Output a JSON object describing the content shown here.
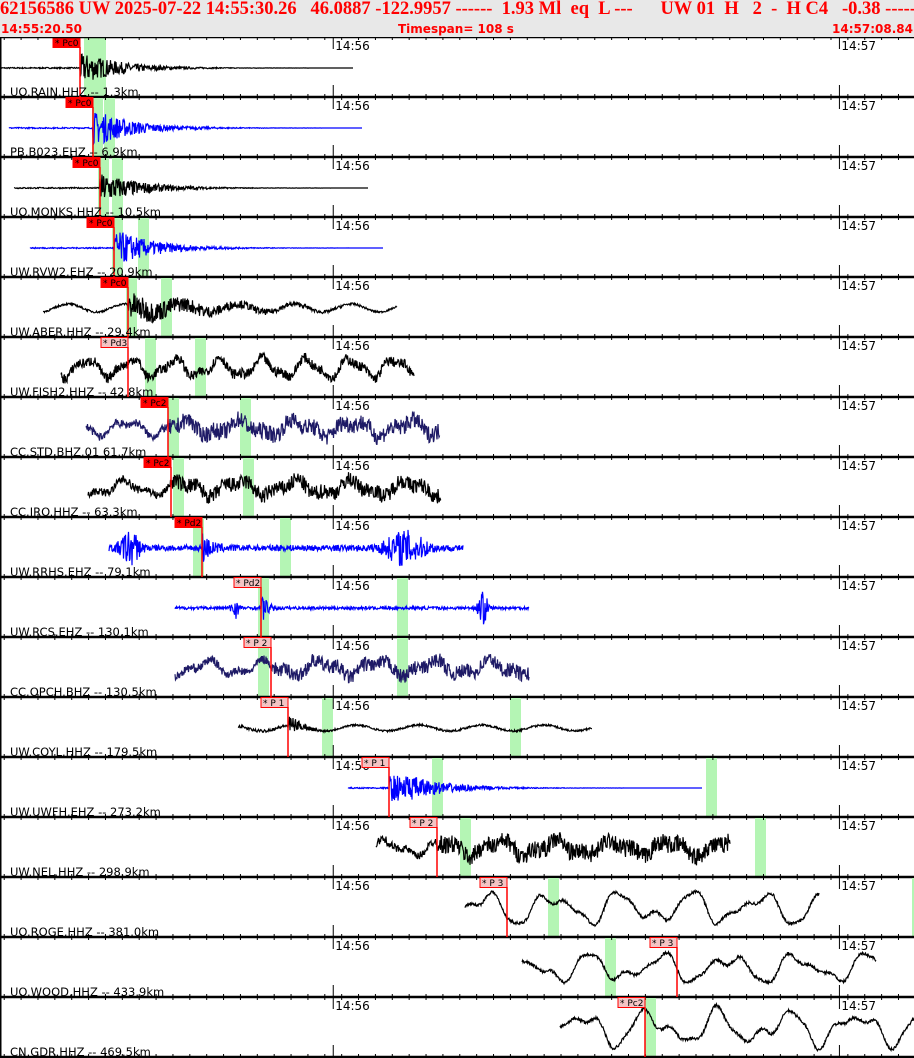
{
  "header": {
    "event_line": "62156586 UW 2025-07-22 14:55:30.26   46.0887 -122.9957 ------  1.93 Ml  eq  L ---      UW 01  H   2  -  H C4   -0.38 -----",
    "start_time": "14:55:20.50",
    "timespan": "Timespan= 108 s",
    "end_time": "14:57:08.84"
  },
  "axis": {
    "minute_labels": [
      "14:56",
      "14:57"
    ]
  },
  "colors": {
    "header_text": "#ff0000",
    "header_bg": "#e8e8e8",
    "pick_line": "#ff0000",
    "pick_solid": "#ff0000",
    "pick_light": "#f4c4c4",
    "window": "#b4f5b4",
    "trace_black": "#000000",
    "trace_blue": "#0000ff",
    "trace_navy": "#1e1a66"
  },
  "traces": [
    {
      "label": "UO.RAIN.HHZ -- 1.3km",
      "pick": "* Pc0",
      "pick_style": "solid",
      "color": "black"
    },
    {
      "label": "PB.B023.EHZ -- 6.9km",
      "pick": "* Pc0",
      "pick_style": "solid",
      "color": "blue"
    },
    {
      "label": "UO.MONKS.HHZ -- 10.5km",
      "pick": "* Pc0",
      "pick_style": "solid",
      "color": "black"
    },
    {
      "label": "UW.RVW2.EHZ -- 20.9km",
      "pick": "* Pc0",
      "pick_style": "solid",
      "color": "blue"
    },
    {
      "label": "UW.ABER.HHZ -- 29.4km",
      "pick": "* Pc0",
      "pick_style": "solid",
      "color": "black"
    },
    {
      "label": "UW.FISH2.HHZ -- 42.8km",
      "pick": "* Pd3",
      "pick_style": "light",
      "color": "black"
    },
    {
      "label": "CC.STD.BHZ.01 61.7km",
      "pick": "* Pc2",
      "pick_style": "solid",
      "color": "navy"
    },
    {
      "label": "CC.IRO.HHZ -- 63.3km",
      "pick": "* Pc2",
      "pick_style": "solid",
      "color": "black"
    },
    {
      "label": "UW.RRHS.EHZ -- 79.1km",
      "pick": "* Pd2",
      "pick_style": "solid",
      "color": "blue"
    },
    {
      "label": "UW.RCS.EHZ -- 130.1km",
      "pick": "* Pd2",
      "pick_style": "light",
      "color": "blue"
    },
    {
      "label": "CC.OPCH.BHZ -- 130.5km",
      "pick": "* P 2",
      "pick_style": "light",
      "color": "navy"
    },
    {
      "label": "UW.COYL.HHZ -- 179.5km",
      "pick": "* P 1",
      "pick_style": "light",
      "color": "black"
    },
    {
      "label": "UW.UWFH.EHZ -- 273.2km",
      "pick": "* P 1",
      "pick_style": "light",
      "color": "blue"
    },
    {
      "label": "UW.NEL.HHZ -- 298.9km",
      "pick": "* P 2",
      "pick_style": "light",
      "color": "black"
    },
    {
      "label": "UO.ROGE.HHZ -- 381.0km",
      "pick": "* P 3",
      "pick_style": "light",
      "color": "black"
    },
    {
      "label": "UO.WOOD.HHZ -- 433.9km",
      "pick": "* P 3",
      "pick_style": "light",
      "color": "black"
    },
    {
      "label": "CN.GDR.HHZ -- 469.5km",
      "pick": "* Pc2",
      "pick_style": "light",
      "color": "black"
    }
  ]
}
